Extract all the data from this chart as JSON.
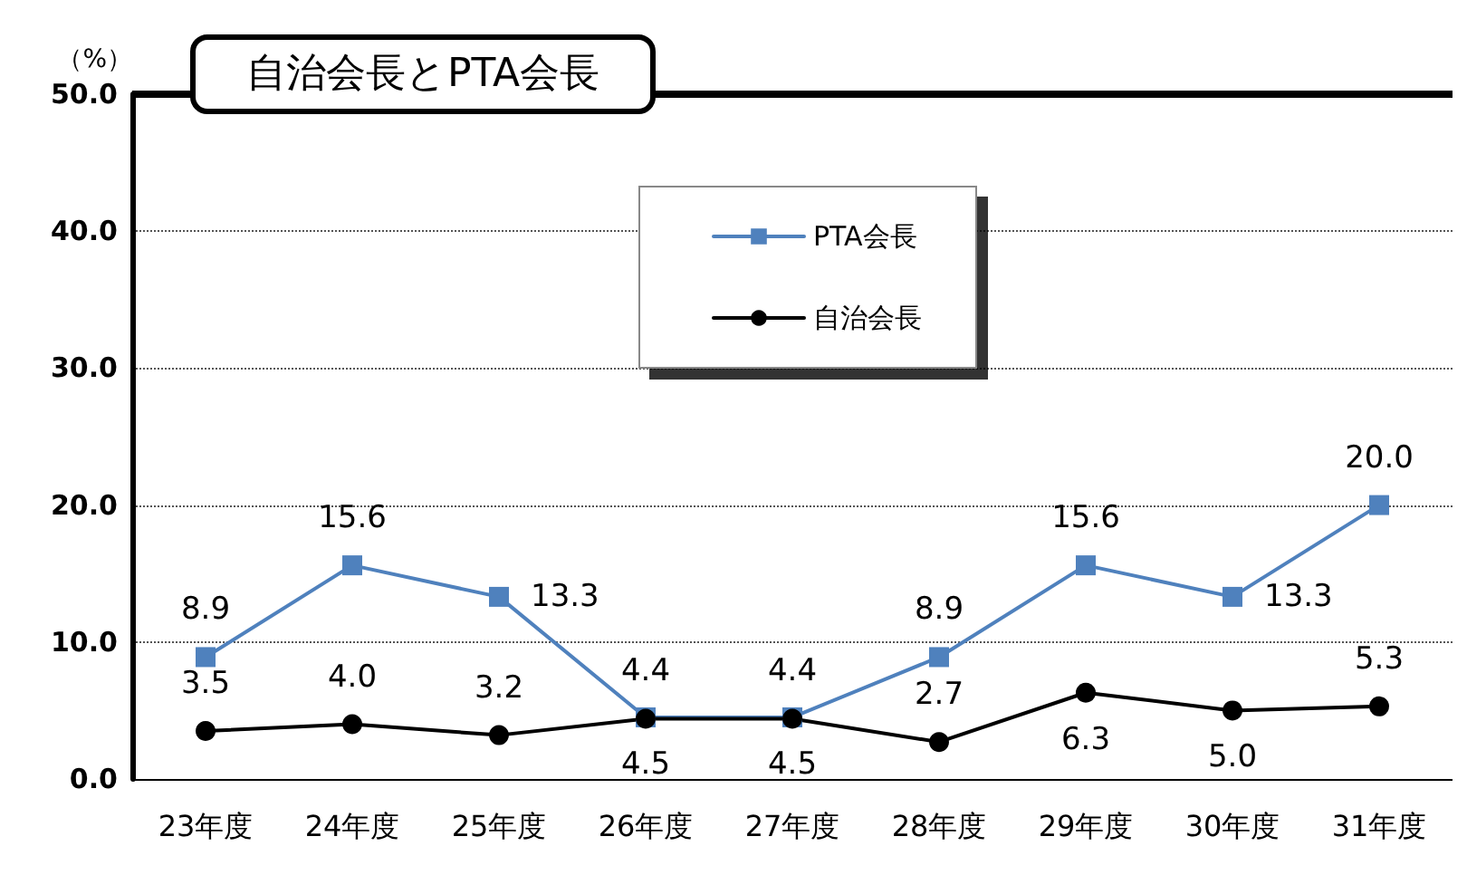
{
  "chart_data": {
    "type": "line",
    "title": "自治会長とPTA会長",
    "ylabel": "（%）",
    "categories": [
      "23年度",
      "24年度",
      "25年度",
      "26年度",
      "27年度",
      "28年度",
      "29年度",
      "30年度",
      "31年度"
    ],
    "series": [
      {
        "name": "PTA会長",
        "color": "#4f81bd",
        "marker": "square",
        "values": [
          8.9,
          15.6,
          13.3,
          4.5,
          4.5,
          8.9,
          15.6,
          13.3,
          20.0
        ],
        "value_labels": [
          "8.9",
          "15.6",
          "13.3",
          "4.5",
          "4.5",
          "8.9",
          "15.6",
          "13.3",
          "20.0"
        ]
      },
      {
        "name": "自治会長",
        "color": "#000000",
        "marker": "circle",
        "values": [
          3.5,
          4.0,
          3.2,
          4.4,
          4.4,
          2.7,
          6.3,
          5.0,
          5.3
        ],
        "value_labels": [
          "3.5",
          "4.0",
          "3.2",
          "4.4",
          "4.4",
          "2.7",
          "6.3",
          "5.0",
          "5.3"
        ]
      }
    ],
    "ylim": [
      0,
      50
    ],
    "yticks": [
      {
        "value": 0,
        "label": "0.0"
      },
      {
        "value": 10,
        "label": "10.0"
      },
      {
        "value": 20,
        "label": "20.0"
      },
      {
        "value": 30,
        "label": "30.0"
      },
      {
        "value": 40,
        "label": "40.0"
      },
      {
        "value": 50,
        "label": "50.0"
      }
    ],
    "grid": "y",
    "legend": "top",
    "line_style": "solid"
  }
}
